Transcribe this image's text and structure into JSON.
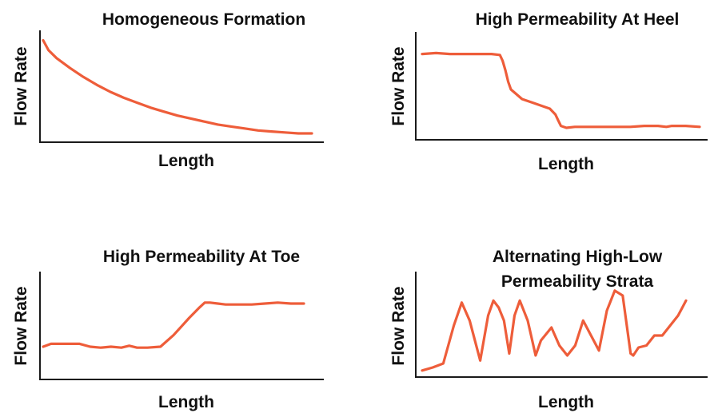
{
  "colors": {
    "line": "#ee5d3a",
    "axis": "#1a1a1a"
  },
  "chart_data": [
    {
      "type": "line",
      "title": [
        "Homogeneous Formation"
      ],
      "xlabel": "Length",
      "ylabel": "Flow Rate",
      "xlim": [
        0,
        100
      ],
      "ylim": [
        0,
        100
      ],
      "grid": false,
      "x": [
        0,
        2,
        5,
        10,
        15,
        20,
        25,
        30,
        35,
        40,
        45,
        50,
        55,
        60,
        65,
        70,
        75,
        80,
        85,
        90,
        95,
        100
      ],
      "values": [
        98,
        88,
        80,
        70,
        61,
        53,
        46,
        40,
        35,
        30,
        26,
        22,
        19,
        16,
        13,
        11,
        9,
        7,
        6,
        5,
        4,
        4
      ]
    },
    {
      "type": "line",
      "title": [
        "High Permeability At Heel"
      ],
      "xlabel": "Length",
      "ylabel": "Flow Rate",
      "xlim": [
        0,
        100
      ],
      "ylim": [
        0,
        100
      ],
      "grid": false,
      "x": [
        0,
        5,
        10,
        20,
        25,
        28,
        29,
        30,
        31,
        32,
        34,
        36,
        40,
        44,
        46,
        48,
        49,
        50,
        52,
        55,
        60,
        70,
        75,
        80,
        85,
        88,
        90,
        95,
        100
      ],
      "values": [
        87,
        88,
        87,
        87,
        87,
        86,
        80,
        70,
        58,
        50,
        45,
        40,
        36,
        32,
        30,
        24,
        18,
        12,
        10,
        11,
        11,
        11,
        11,
        12,
        12,
        11,
        12,
        12,
        11
      ]
    },
    {
      "type": "line",
      "title": [
        "High Permeability At Toe"
      ],
      "xlabel": "Length",
      "ylabel": "Flow Rate",
      "xlim": [
        0,
        100
      ],
      "ylim": [
        0,
        100
      ],
      "grid": false,
      "x": [
        0,
        3,
        8,
        14,
        18,
        22,
        26,
        30,
        33,
        36,
        40,
        45,
        50,
        53,
        56,
        60,
        62,
        64,
        67,
        70,
        75,
        80,
        85,
        90,
        95,
        100
      ],
      "values": [
        30,
        33,
        33,
        33,
        30,
        29,
        30,
        29,
        31,
        29,
        29,
        30,
        42,
        51,
        60,
        71,
        76,
        76,
        75,
        74,
        74,
        74,
        75,
        76,
        75,
        75
      ]
    },
    {
      "type": "line",
      "title": [
        "Alternating High-Low",
        "Permeability Strata"
      ],
      "xlabel": "Length",
      "ylabel": "Flow Rate",
      "xlim": [
        0,
        100
      ],
      "ylim": [
        0,
        100
      ],
      "grid": false,
      "x": [
        0,
        4,
        8,
        12,
        15,
        18,
        20,
        22,
        25,
        27,
        29,
        31,
        33,
        35,
        37,
        40,
        43,
        45,
        49,
        52,
        55,
        58,
        61,
        64,
        67,
        70,
        73,
        76,
        79,
        80,
        82,
        85,
        88,
        91,
        94,
        97,
        100
      ],
      "values": [
        5,
        8,
        12,
        50,
        73,
        55,
        35,
        15,
        60,
        75,
        68,
        55,
        22,
        60,
        75,
        55,
        20,
        35,
        48,
        30,
        20,
        30,
        55,
        40,
        25,
        65,
        85,
        80,
        22,
        20,
        28,
        30,
        40,
        40,
        50,
        60,
        75
      ]
    }
  ]
}
